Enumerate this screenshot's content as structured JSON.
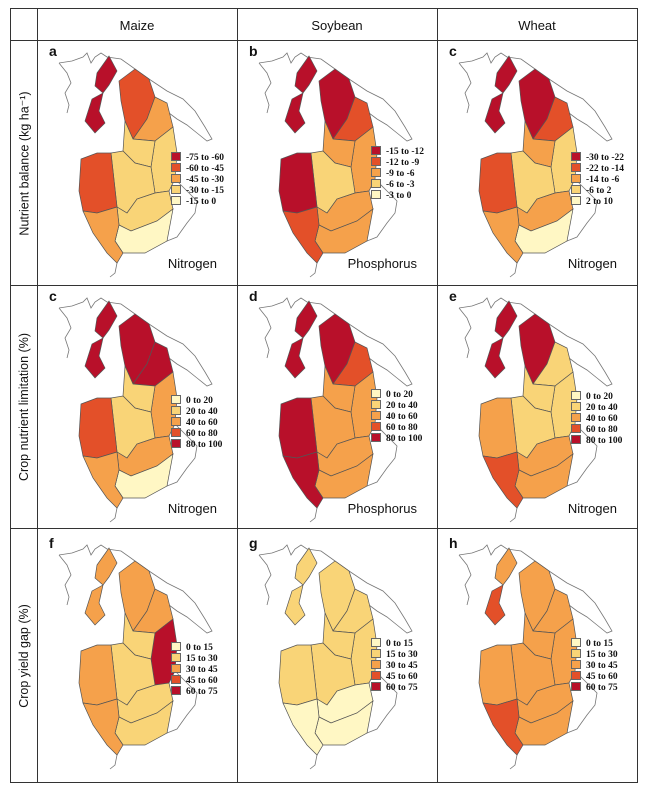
{
  "columns": [
    "Maize",
    "Soybean",
    "Wheat"
  ],
  "rows": [
    "Nutrient balance (kg ha⁻¹)",
    "Crop nutrient limitation (%)",
    "Crop yield gap (%)"
  ],
  "colors": {
    "c1": "#fff7c4",
    "c2": "#f9d477",
    "c3": "#f5a14b",
    "c4": "#e35029",
    "c5": "#b8102a",
    "border": "#555555"
  },
  "panels": [
    {
      "letter": "a",
      "nutrient": "Nitrogen",
      "legend": [
        "-75 to -60",
        "-60 to -45",
        "-45 to -30",
        "-30 to -15",
        "-15 to 0"
      ],
      "legend_colors": [
        "c5",
        "c4",
        "c3",
        "c2",
        "c1"
      ],
      "regions": [
        "c5",
        "c5",
        "c4",
        "c3",
        "c2",
        "c2",
        "c2",
        "c4",
        "c2",
        "c1",
        "c3"
      ]
    },
    {
      "letter": "b",
      "nutrient": "Phosphorus",
      "legend": [
        "-15 to -12",
        "-12 to -9",
        "-9 to -6",
        "-6 to -3",
        "-3 to 0"
      ],
      "legend_colors": [
        "c5",
        "c4",
        "c3",
        "c2",
        "c1"
      ],
      "regions": [
        "c5",
        "c5",
        "c5",
        "c4",
        "c3",
        "c3",
        "c2",
        "c5",
        "c3",
        "c3",
        "c4"
      ]
    },
    {
      "letter": "c",
      "nutrient": "Nitrogen",
      "legend": [
        "-30 to -22",
        "-22 to -14",
        "-14 to -6",
        "-6 to 2",
        "2 to 10"
      ],
      "legend_colors": [
        "c5",
        "c4",
        "c3",
        "c2",
        "c1"
      ],
      "regions": [
        "c5",
        "c5",
        "c5",
        "c4",
        "c2",
        "c3",
        "c2",
        "c4",
        "c3",
        "c1",
        "c3"
      ]
    },
    {
      "letter": "c",
      "nutrient": "Nitrogen",
      "legend": [
        "0 to 20",
        "20 to 40",
        "40 to 60",
        "60 to 80",
        "80 to 100"
      ],
      "legend_colors": [
        "c1",
        "c2",
        "c3",
        "c4",
        "c5"
      ],
      "regions": [
        "c5",
        "c5",
        "c5",
        "c5",
        "c3",
        "c2",
        "c2",
        "c4",
        "c3",
        "c1",
        "c3"
      ]
    },
    {
      "letter": "d",
      "nutrient": "Phosphorus",
      "legend": [
        "0 to 20",
        "20 to 40",
        "40 to 60",
        "60 to 80",
        "80 to 100"
      ],
      "legend_colors": [
        "c1",
        "c2",
        "c3",
        "c4",
        "c5"
      ],
      "regions": [
        "c5",
        "c5",
        "c5",
        "c4",
        "c3",
        "c3",
        "c3",
        "c5",
        "c3",
        "c3",
        "c5"
      ]
    },
    {
      "letter": "e",
      "nutrient": "Nitrogen",
      "legend": [
        "0 to 20",
        "20 to 40",
        "40 to 60",
        "60 to 80",
        "80 to 100"
      ],
      "legend_colors": [
        "c1",
        "c2",
        "c3",
        "c4",
        "c5"
      ],
      "regions": [
        "c5",
        "c5",
        "c5",
        "c2",
        "c2",
        "c2",
        "c2",
        "c3",
        "c3",
        "c3",
        "c4"
      ]
    },
    {
      "letter": "f",
      "nutrient": "",
      "legend": [
        "0 to 15",
        "15 to 30",
        "30 to 45",
        "45 to 60",
        "60 to 75"
      ],
      "legend_colors": [
        "c1",
        "c2",
        "c3",
        "c4",
        "c5"
      ],
      "regions": [
        "c3",
        "c3",
        "c3",
        "c3",
        "c5",
        "c2",
        "c2",
        "c3",
        "c2",
        "c2",
        "c3"
      ]
    },
    {
      "letter": "g",
      "nutrient": "",
      "legend": [
        "0 to 15",
        "15 to 30",
        "30 to 45",
        "45 to 60",
        "60 to 75"
      ],
      "legend_colors": [
        "c1",
        "c2",
        "c3",
        "c4",
        "c5"
      ],
      "regions": [
        "c2",
        "c2",
        "c2",
        "c2",
        "c2",
        "c2",
        "c2",
        "c2",
        "c1",
        "c1",
        "c1"
      ]
    },
    {
      "letter": "h",
      "nutrient": "",
      "legend": [
        "0 to 15",
        "15 to 30",
        "30 to 45",
        "45 to 60",
        "60 to 75"
      ],
      "legend_colors": [
        "c1",
        "c2",
        "c3",
        "c4",
        "c5"
      ],
      "regions": [
        "c3",
        "c4",
        "c3",
        "c3",
        "c3",
        "c3",
        "c3",
        "c3",
        "c3",
        "c3",
        "c4"
      ]
    }
  ]
}
